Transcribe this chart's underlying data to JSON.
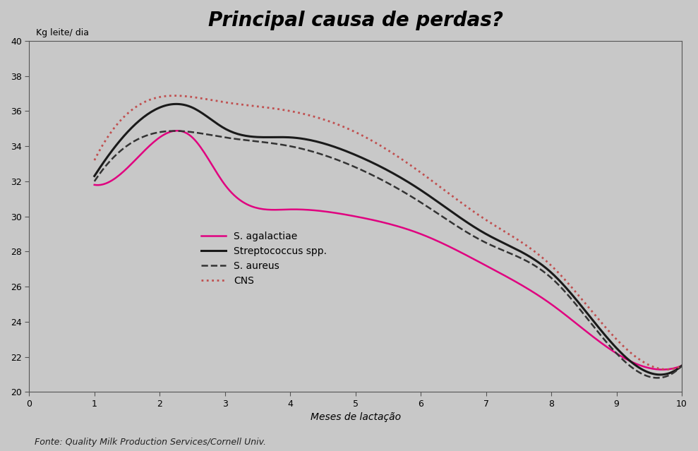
{
  "title": "Principal causa de perdas?",
  "ylabel": "Kg leite/ dia",
  "xlabel": "Meses de lactação",
  "footnote": "Fonte: Quality Milk Production Services/Cornell Univ.",
  "background_color": "#c8c8c8",
  "plot_bg_color": "#c8c8c8",
  "xlim": [
    0,
    10
  ],
  "ylim": [
    20,
    40
  ],
  "xticks": [
    0,
    1,
    2,
    3,
    4,
    5,
    6,
    7,
    8,
    9,
    10
  ],
  "yticks": [
    20,
    22,
    24,
    26,
    28,
    30,
    32,
    34,
    36,
    38,
    40
  ],
  "series": {
    "S. agalactiae": {
      "color": "#e0007f",
      "linestyle": "solid",
      "linewidth": 1.8,
      "x": [
        1,
        2,
        2.5,
        3,
        4,
        5,
        6,
        7,
        8,
        9,
        10
      ],
      "y": [
        31.8,
        34.5,
        34.5,
        31.8,
        30.4,
        30.0,
        29.0,
        27.2,
        25.0,
        22.2,
        21.5
      ]
    },
    "Streptococcus spp.": {
      "color": "#1a1a1a",
      "linestyle": "solid",
      "linewidth": 2.2,
      "x": [
        1,
        2,
        2.5,
        3,
        4,
        5,
        6,
        7,
        8,
        9,
        10
      ],
      "y": [
        32.3,
        36.2,
        36.2,
        35.0,
        34.5,
        33.5,
        31.5,
        29.0,
        26.8,
        22.5,
        21.5
      ]
    },
    "S. aureus": {
      "color": "#333333",
      "linestyle": "dashed",
      "linewidth": 1.8,
      "x": [
        1,
        2,
        2.5,
        3,
        4,
        5,
        6,
        7,
        8,
        9,
        10
      ],
      "y": [
        32.0,
        34.8,
        34.8,
        34.5,
        34.0,
        32.8,
        30.8,
        28.5,
        26.5,
        22.2,
        21.5
      ]
    },
    "CNS": {
      "color": "#c05050",
      "linestyle": "dotted",
      "linewidth": 2.0,
      "x": [
        1,
        2,
        2.5,
        3,
        4,
        5,
        6,
        7,
        8,
        9,
        10
      ],
      "y": [
        33.2,
        36.8,
        36.8,
        36.5,
        36.0,
        34.8,
        32.5,
        29.8,
        27.2,
        23.0,
        21.5
      ]
    }
  }
}
